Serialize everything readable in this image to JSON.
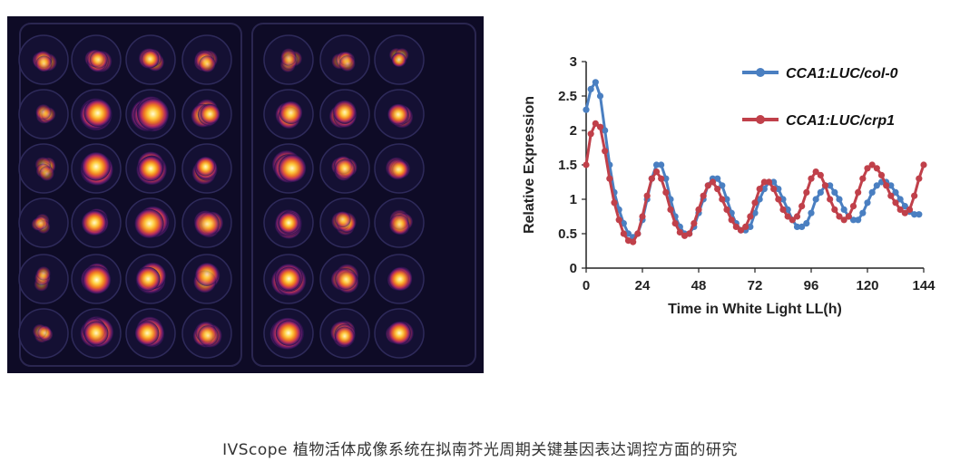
{
  "imaging": {
    "colormap": [
      "#1a1040",
      "#5a1a6a",
      "#c0305a",
      "#f07a20",
      "#ffd040",
      "#ffffe0"
    ],
    "rows": 6,
    "cols": 7,
    "well_intensity": [
      [
        0.35,
        0.45,
        0.45,
        0.4,
        0.2,
        0.25,
        0.2
      ],
      [
        0.2,
        0.95,
        0.95,
        0.6,
        0.7,
        0.65,
        0.5
      ],
      [
        0.2,
        0.95,
        0.85,
        0.6,
        0.8,
        0.55,
        0.45
      ],
      [
        0.15,
        0.75,
        0.85,
        0.6,
        0.75,
        0.4,
        0.4
      ],
      [
        0.15,
        0.95,
        0.9,
        0.6,
        0.85,
        0.55,
        0.55
      ],
      [
        0.2,
        0.8,
        0.75,
        0.55,
        0.9,
        0.6,
        0.55
      ]
    ]
  },
  "chart_data": {
    "type": "line",
    "title": "",
    "xlabel": "Time in White Light LL(h)",
    "ylabel": "Relative Expression",
    "xlim": [
      0,
      144
    ],
    "ylim": [
      0,
      3
    ],
    "xticks": [
      "0",
      "24",
      "48",
      "72",
      "96",
      "120",
      "144"
    ],
    "yticks": [
      "0",
      "0.5",
      "1",
      "1.5",
      "2",
      "2.5",
      "3"
    ],
    "grid": false,
    "legend_position": "top-right",
    "series": [
      {
        "name": "CCA1:LUC/col-0",
        "color": "#4a7fc1",
        "points": [
          [
            0,
            2.3
          ],
          [
            2,
            2.6
          ],
          [
            4,
            2.7
          ],
          [
            6,
            2.5
          ],
          [
            8,
            2.0
          ],
          [
            10,
            1.5
          ],
          [
            12,
            1.1
          ],
          [
            14,
            0.85
          ],
          [
            16,
            0.65
          ],
          [
            18,
            0.5
          ],
          [
            20,
            0.45
          ],
          [
            22,
            0.5
          ],
          [
            24,
            0.7
          ],
          [
            26,
            1.0
          ],
          [
            28,
            1.3
          ],
          [
            30,
            1.5
          ],
          [
            32,
            1.5
          ],
          [
            34,
            1.3
          ],
          [
            36,
            1.0
          ],
          [
            38,
            0.75
          ],
          [
            40,
            0.6
          ],
          [
            42,
            0.5
          ],
          [
            44,
            0.5
          ],
          [
            46,
            0.6
          ],
          [
            48,
            0.8
          ],
          [
            50,
            1.0
          ],
          [
            52,
            1.2
          ],
          [
            54,
            1.3
          ],
          [
            56,
            1.3
          ],
          [
            58,
            1.2
          ],
          [
            60,
            1.0
          ],
          [
            62,
            0.8
          ],
          [
            64,
            0.65
          ],
          [
            66,
            0.55
          ],
          [
            68,
            0.55
          ],
          [
            70,
            0.6
          ],
          [
            72,
            0.8
          ],
          [
            74,
            1.0
          ],
          [
            76,
            1.15
          ],
          [
            78,
            1.25
          ],
          [
            80,
            1.25
          ],
          [
            82,
            1.15
          ],
          [
            84,
            1.0
          ],
          [
            86,
            0.85
          ],
          [
            88,
            0.7
          ],
          [
            90,
            0.6
          ],
          [
            92,
            0.6
          ],
          [
            94,
            0.65
          ],
          [
            96,
            0.8
          ],
          [
            98,
            1.0
          ],
          [
            100,
            1.1
          ],
          [
            102,
            1.2
          ],
          [
            104,
            1.2
          ],
          [
            106,
            1.1
          ],
          [
            108,
            1.0
          ],
          [
            110,
            0.85
          ],
          [
            112,
            0.75
          ],
          [
            114,
            0.7
          ],
          [
            116,
            0.7
          ],
          [
            118,
            0.8
          ],
          [
            120,
            0.95
          ],
          [
            122,
            1.1
          ],
          [
            124,
            1.2
          ],
          [
            126,
            1.25
          ],
          [
            128,
            1.25
          ],
          [
            130,
            1.2
          ],
          [
            132,
            1.1
          ],
          [
            134,
            1.0
          ],
          [
            136,
            0.9
          ],
          [
            138,
            0.82
          ],
          [
            140,
            0.78
          ],
          [
            142,
            0.78
          ]
        ]
      },
      {
        "name": "CCA1:LUC/crp1",
        "color": "#c0404a",
        "points": [
          [
            0,
            1.5
          ],
          [
            2,
            1.95
          ],
          [
            4,
            2.1
          ],
          [
            6,
            2.05
          ],
          [
            8,
            1.7
          ],
          [
            10,
            1.3
          ],
          [
            12,
            0.95
          ],
          [
            14,
            0.7
          ],
          [
            16,
            0.5
          ],
          [
            18,
            0.4
          ],
          [
            20,
            0.38
          ],
          [
            22,
            0.5
          ],
          [
            24,
            0.75
          ],
          [
            26,
            1.05
          ],
          [
            28,
            1.3
          ],
          [
            30,
            1.4
          ],
          [
            32,
            1.3
          ],
          [
            34,
            1.1
          ],
          [
            36,
            0.85
          ],
          [
            38,
            0.65
          ],
          [
            40,
            0.52
          ],
          [
            42,
            0.47
          ],
          [
            44,
            0.5
          ],
          [
            46,
            0.65
          ],
          [
            48,
            0.85
          ],
          [
            50,
            1.05
          ],
          [
            52,
            1.2
          ],
          [
            54,
            1.25
          ],
          [
            56,
            1.15
          ],
          [
            58,
            1.0
          ],
          [
            60,
            0.85
          ],
          [
            62,
            0.7
          ],
          [
            64,
            0.6
          ],
          [
            66,
            0.55
          ],
          [
            68,
            0.6
          ],
          [
            70,
            0.75
          ],
          [
            72,
            0.95
          ],
          [
            74,
            1.15
          ],
          [
            76,
            1.25
          ],
          [
            78,
            1.25
          ],
          [
            80,
            1.15
          ],
          [
            82,
            1.0
          ],
          [
            84,
            0.85
          ],
          [
            86,
            0.75
          ],
          [
            88,
            0.7
          ],
          [
            90,
            0.75
          ],
          [
            92,
            0.9
          ],
          [
            94,
            1.1
          ],
          [
            96,
            1.3
          ],
          [
            98,
            1.4
          ],
          [
            100,
            1.35
          ],
          [
            102,
            1.2
          ],
          [
            104,
            1.0
          ],
          [
            106,
            0.85
          ],
          [
            108,
            0.75
          ],
          [
            110,
            0.7
          ],
          [
            112,
            0.75
          ],
          [
            114,
            0.9
          ],
          [
            116,
            1.1
          ],
          [
            118,
            1.3
          ],
          [
            120,
            1.45
          ],
          [
            122,
            1.5
          ],
          [
            124,
            1.45
          ],
          [
            126,
            1.35
          ],
          [
            128,
            1.2
          ],
          [
            130,
            1.05
          ],
          [
            132,
            0.95
          ],
          [
            134,
            0.85
          ],
          [
            136,
            0.8
          ],
          [
            138,
            0.85
          ],
          [
            140,
            1.05
          ],
          [
            142,
            1.3
          ],
          [
            144,
            1.5
          ]
        ]
      }
    ]
  },
  "caption": "IVScope 植物活体成像系统在拟南芥光周期关键基因表达调控方面的研究"
}
